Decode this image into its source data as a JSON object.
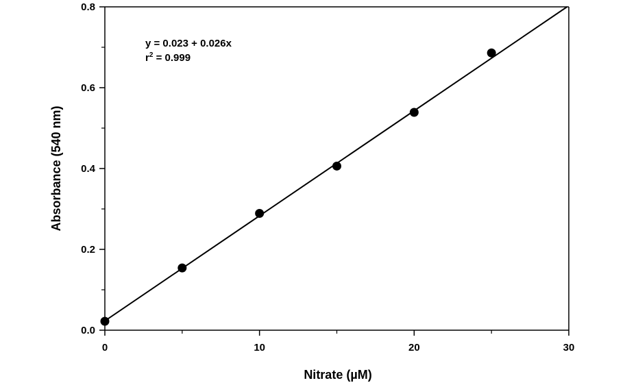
{
  "chart_data": {
    "type": "scatter",
    "xlabel": "Nitrate (µM)",
    "ylabel": "Absorbance (540 nm)",
    "xlim": [
      0,
      30
    ],
    "ylim": [
      0,
      0.8
    ],
    "x_ticks": [
      0,
      10,
      20,
      30
    ],
    "x_tick_labels": [
      "0",
      "10",
      "20",
      "30"
    ],
    "x_minor_ticks": [
      5,
      15,
      25
    ],
    "y_ticks": [
      0,
      0.2,
      0.4,
      0.6,
      0.8
    ],
    "y_tick_labels": [
      "0.0",
      "0.2",
      "0.4",
      "0.6",
      "0.8"
    ],
    "y_minor_ticks": [
      0.1,
      0.3,
      0.5,
      0.7
    ],
    "grid": false,
    "series": [
      {
        "x": [
          0,
          5,
          10,
          15,
          20,
          25
        ],
        "y": [
          0.022,
          0.154,
          0.289,
          0.406,
          0.539,
          0.686
        ],
        "color": "#000000"
      }
    ],
    "fit_line": {
      "intercept": 0.023,
      "slope": 0.026,
      "x_range": [
        0,
        30
      ]
    },
    "annotations": {
      "equation": "y = 0.023 + 0.026x",
      "r_base": "r",
      "r_exp": "2",
      "r_value": " = 0.999"
    }
  }
}
